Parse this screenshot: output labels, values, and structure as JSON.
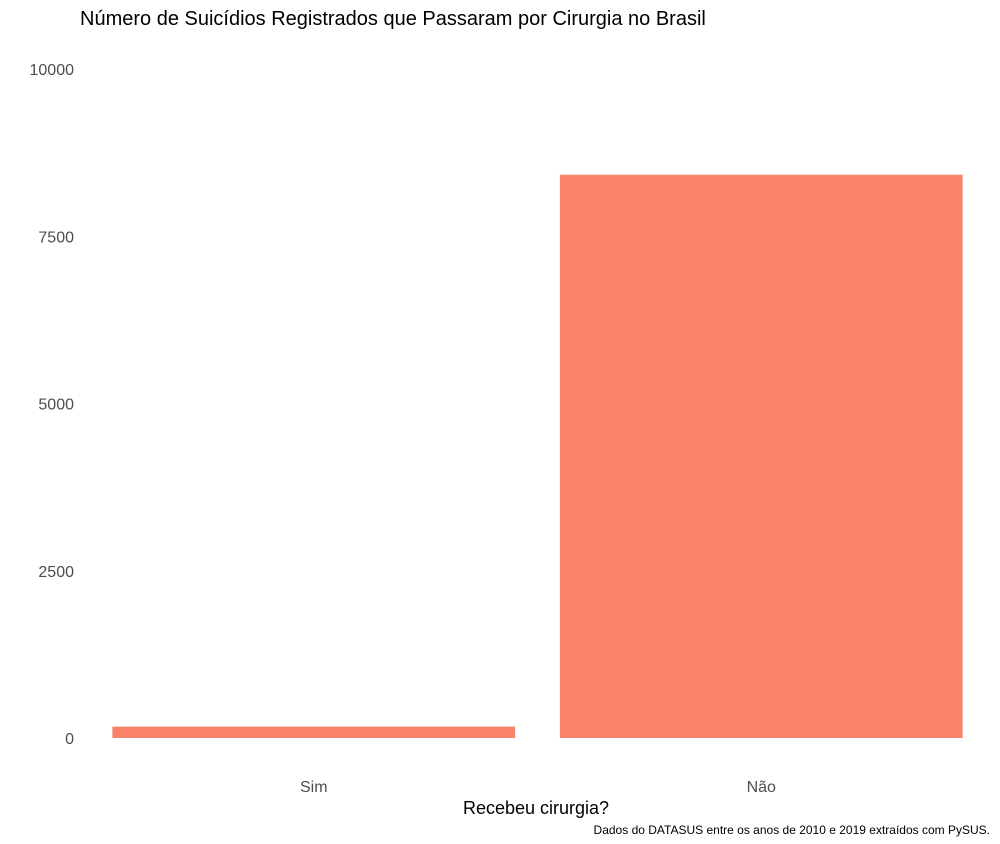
{
  "chart_data": {
    "type": "bar",
    "title": "Número de Suicídios Registrados que Passaram por Cirurgia no Brasil",
    "xlabel": "Recebeu cirurgia?",
    "ylabel": "",
    "caption": "Dados do DATASUS entre os anos de 2010 e 2019 extraídos com PySUS.",
    "categories": [
      "Sim",
      "Não"
    ],
    "values": [
      170,
      8420
    ],
    "ylim": [
      0,
      10000
    ],
    "yticks": [
      0,
      2500,
      5000,
      7500,
      10000
    ],
    "ytick_labels": [
      "0",
      "2500",
      "5000",
      "7500",
      "10000"
    ],
    "bar_color": "#F8826A",
    "grid": false,
    "legend": "none"
  }
}
